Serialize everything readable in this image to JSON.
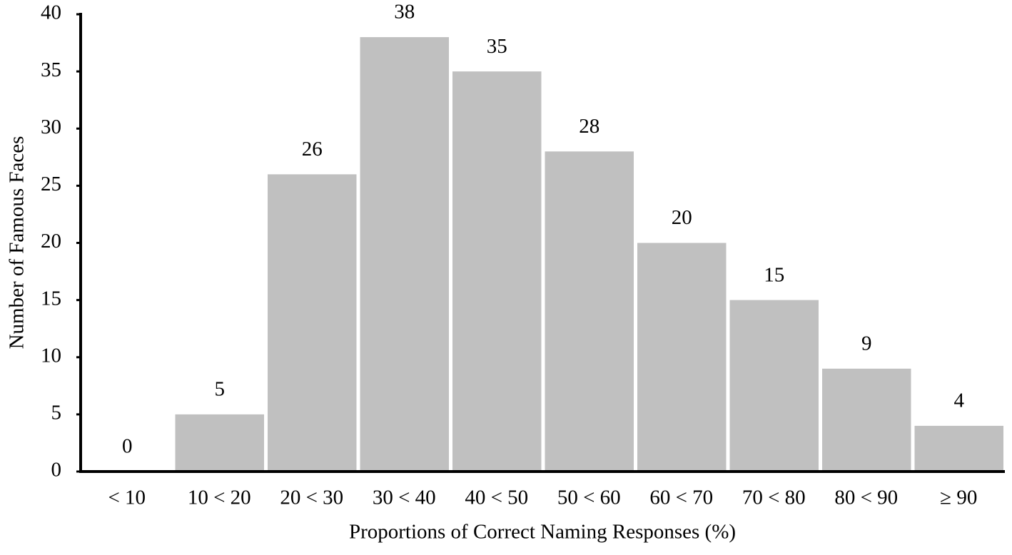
{
  "chart_data": {
    "type": "bar",
    "x_label": "Proportions of Correct Naming Responses (%)",
    "y_label": "Number of Famous Faces",
    "categories": [
      "< 10",
      "10 < 20",
      "20 < 30",
      "30 < 40",
      "40 < 50",
      "50 < 60",
      "60 < 70",
      "70 < 80",
      "80 < 90",
      "≥ 90"
    ],
    "values": [
      0,
      5,
      26,
      38,
      35,
      28,
      20,
      15,
      9,
      4
    ],
    "color": "#c0c0c0",
    "ylim": [
      0,
      40
    ],
    "yticks": [
      0,
      5,
      10,
      15,
      20,
      25,
      30,
      35,
      40
    ]
  }
}
